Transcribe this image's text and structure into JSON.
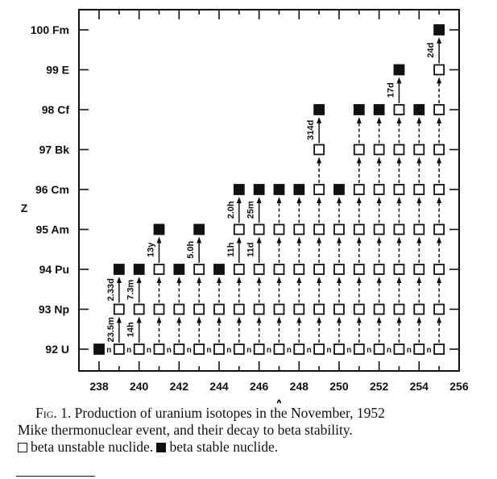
{
  "chart_data": {
    "type": "scatter",
    "title": "",
    "xlabel": "A",
    "ylabel": "Z",
    "xlim": [
      237,
      256
    ],
    "ylim": [
      91.5,
      100.5
    ],
    "x_ticks": [
      "238",
      "240",
      "242",
      "244",
      "246",
      "248",
      "250",
      "252",
      "254",
      "256"
    ],
    "y_ticks": [
      {
        "z": 92,
        "label": "92 U"
      },
      {
        "z": 93,
        "label": "93 Np"
      },
      {
        "z": 94,
        "label": "94 Pu"
      },
      {
        "z": 95,
        "label": "95 Am"
      },
      {
        "z": 96,
        "label": "96 Cm"
      },
      {
        "z": 97,
        "label": "97 Bk"
      },
      {
        "z": 98,
        "label": "98 Cf"
      },
      {
        "z": 99,
        "label": "99 E"
      },
      {
        "z": 100,
        "label": "100 Fm"
      }
    ],
    "neutron_capture_label": "n",
    "legend": {
      "open": "beta unstable nuclide",
      "filled": "beta stable nuclide"
    },
    "columns": [
      {
        "a": 238,
        "stable_z": 92,
        "half_lives": {}
      },
      {
        "a": 239,
        "stable_z": 94,
        "half_lives": {
          "92": "23.5m",
          "93": "2.33d"
        }
      },
      {
        "a": 240,
        "stable_z": 94,
        "half_lives": {
          "92": "14h",
          "93": "7.3m"
        }
      },
      {
        "a": 241,
        "stable_z": 95,
        "half_lives": {
          "94": "13y"
        }
      },
      {
        "a": 242,
        "stable_z": 94,
        "half_lives": {}
      },
      {
        "a": 243,
        "stable_z": 95,
        "half_lives": {
          "94": "5.0h"
        }
      },
      {
        "a": 244,
        "stable_z": 94,
        "half_lives": {}
      },
      {
        "a": 245,
        "stable_z": 96,
        "half_lives": {
          "94": "11h",
          "95": "2.0h"
        }
      },
      {
        "a": 246,
        "stable_z": 96,
        "half_lives": {
          "94": "11d",
          "95": "25m"
        }
      },
      {
        "a": 247,
        "stable_z": 96,
        "half_lives": {}
      },
      {
        "a": 248,
        "stable_z": 96,
        "half_lives": {}
      },
      {
        "a": 249,
        "stable_z": 98,
        "half_lives": {
          "97": "314d"
        }
      },
      {
        "a": 250,
        "stable_z": 96,
        "half_lives": {}
      },
      {
        "a": 251,
        "stable_z": 98,
        "half_lives": {}
      },
      {
        "a": 252,
        "stable_z": 98,
        "half_lives": {}
      },
      {
        "a": 253,
        "stable_z": 99,
        "half_lives": {
          "98": "17d"
        }
      },
      {
        "a": 254,
        "stable_z": 98,
        "half_lives": {}
      },
      {
        "a": 255,
        "stable_z": 100,
        "half_lives": {
          "99": "24d"
        }
      }
    ]
  },
  "caption": {
    "fig_label": "Fig. 1.",
    "line1": "Production of uranium isotopes in the November, 1952",
    "line2": "Mike thermonuclear event, and their decay to beta stability.",
    "legend_open": "beta unstable nuclide.",
    "legend_filled": "beta stable nuclide."
  },
  "colors": {
    "ink": "#111111",
    "paper": "#ffffff"
  }
}
